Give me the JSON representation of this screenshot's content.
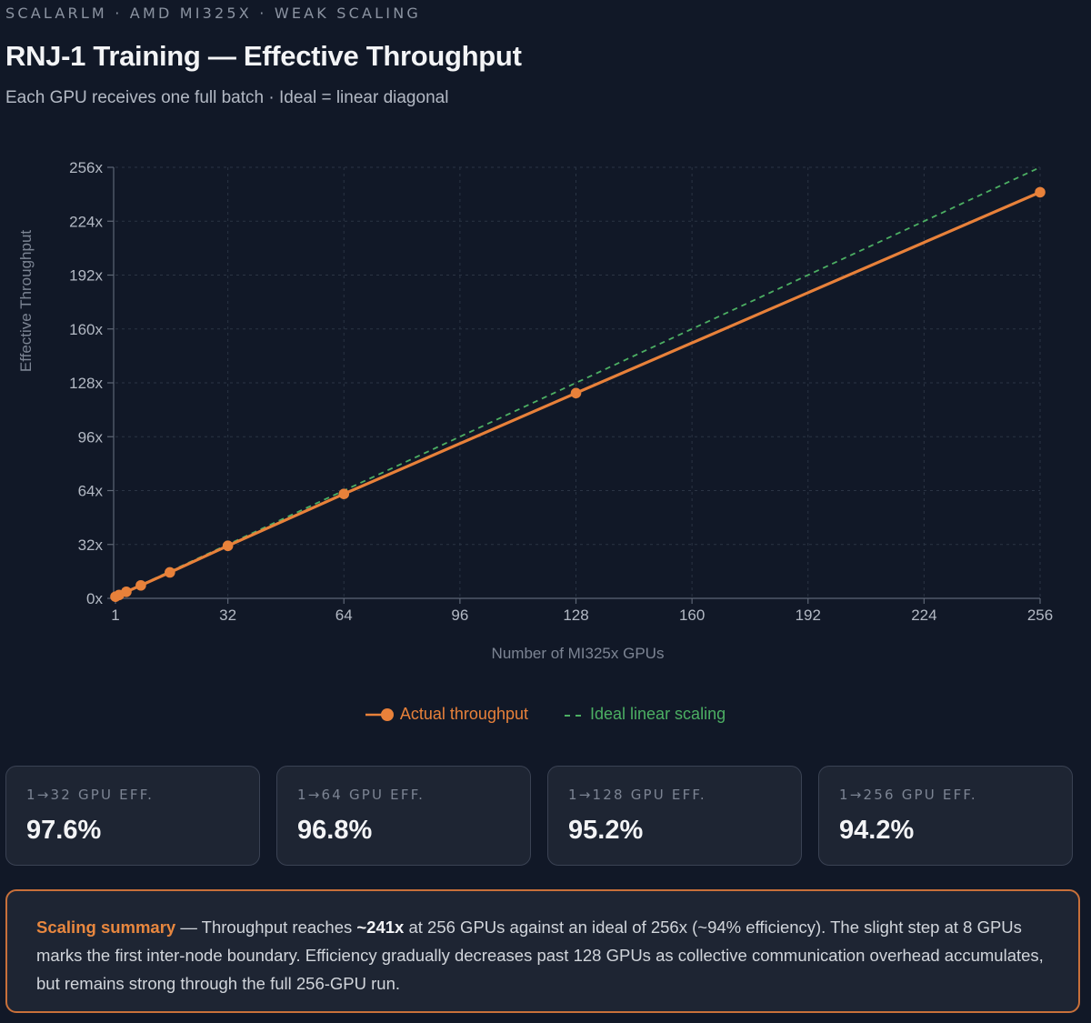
{
  "header": {
    "eyebrow": "SCALARLM · AMD MI325X · WEAK SCALING",
    "title": "RNJ-1 Training — Effective Throughput",
    "subtitle": "Each GPU receives one full batch · Ideal = linear diagonal"
  },
  "colors": {
    "actual": "#e8813a",
    "ideal": "#4caf63",
    "grid": "#2b3444",
    "axis": "#5d6675",
    "tick_text": "#b3b9c4",
    "axis_label": "#7c8493"
  },
  "chart_data": {
    "type": "line",
    "title": "RNJ-1 Training — Effective Throughput",
    "xlabel": "Number of MI325x GPUs",
    "ylabel": "Effective Throughput",
    "xlim": [
      1,
      256
    ],
    "ylim": [
      0,
      256
    ],
    "x_ticks": [
      1,
      32,
      64,
      96,
      128,
      160,
      192,
      224,
      256
    ],
    "x_tick_labels": [
      "1",
      "32",
      "64",
      "96",
      "128",
      "160",
      "192",
      "224",
      "256"
    ],
    "y_ticks": [
      0,
      32,
      64,
      96,
      128,
      160,
      192,
      224,
      256
    ],
    "y_tick_labels": [
      "0x",
      "32x",
      "64x",
      "96x",
      "128x",
      "160x",
      "192x",
      "224x",
      "256x"
    ],
    "grid": true,
    "series": [
      {
        "name": "Actual throughput",
        "style": "solid-markers",
        "x": [
          1,
          2,
          4,
          8,
          16,
          32,
          64,
          128,
          256
        ],
        "y": [
          1,
          2,
          3.9,
          7.7,
          15.4,
          31.2,
          62,
          121.9,
          241.2
        ]
      },
      {
        "name": "Ideal linear scaling",
        "style": "dashed",
        "x": [
          1,
          256
        ],
        "y": [
          1,
          256
        ]
      }
    ],
    "legend_position": "bottom-center"
  },
  "legend": {
    "actual_label": "Actual throughput",
    "ideal_label": "Ideal linear scaling"
  },
  "cards": [
    {
      "label": "1→32 GPU EFF.",
      "value": "97.6%"
    },
    {
      "label": "1→64 GPU EFF.",
      "value": "96.8%"
    },
    {
      "label": "1→128 GPU EFF.",
      "value": "95.2%"
    },
    {
      "label": "1→256 GPU EFF.",
      "value": "94.2%"
    }
  ],
  "summary": {
    "heading": "Scaling summary",
    "text_1": " — Throughput reaches ",
    "highlight": "~241x",
    "text_2": " at 256 GPUs against an ideal of 256x (~94% efficiency). The slight step at 8 GPUs marks the first inter-node boundary. Efficiency gradually decreases past 128 GPUs as collective communication overhead accumulates, but remains strong through the full 256-GPU run."
  }
}
